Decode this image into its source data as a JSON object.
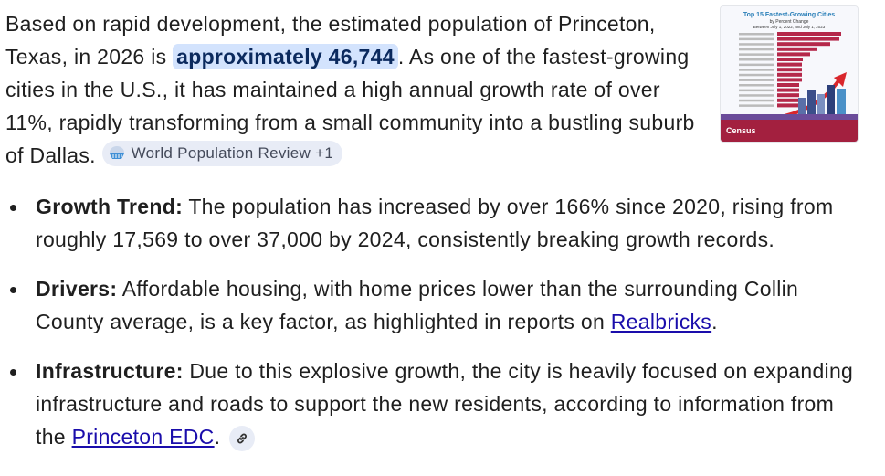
{
  "intro": {
    "text_before": "Based on rapid development, the estimated population of Princeton, Texas, in 2026 is ",
    "highlight": "approximately 46,744",
    "text_after": ". As one of the fastest-growing cities in the U.S., it has maintained a high annual growth rate of over 11%, rapidly transforming from a small community into a bustling suburb of Dallas.",
    "source_chip": {
      "label": "World Population Review +1",
      "icon": "world-population-review-logo"
    }
  },
  "thumbnail": {
    "title": "Top 15 Fastest-Growing Cities",
    "subtitle": "by Percent Change",
    "subtitle2": "Between July 1, 2022, and July 1, 2023",
    "logo": "Census",
    "bar_colors": {
      "bar": "#b5284a",
      "title": "#2a7fb8",
      "footer": "#a3203f"
    }
  },
  "bullets": [
    {
      "label": "Growth Trend:",
      "text": " The population has increased by over 166% since 2020, rising from roughly 17,569 to over 37,000 by 2024, consistently breaking growth records."
    },
    {
      "label": "Drivers:",
      "text": " Affordable housing, with home prices lower than the surrounding Collin County average, is a key factor, as highlighted in reports on ",
      "link": "Realbricks",
      "text_after": "."
    },
    {
      "label": "Infrastructure:",
      "text": " Due to this explosive growth, the city is heavily focused on expanding infrastructure and roads to support the new residents, according to information from the ",
      "link": "Princeton EDC",
      "text_after": ".",
      "icon": "link-icon"
    }
  ],
  "colors": {
    "highlight_bg": "#d3e3fd",
    "link": "#1a0dab",
    "chip_bg": "#e8ecf6"
  }
}
